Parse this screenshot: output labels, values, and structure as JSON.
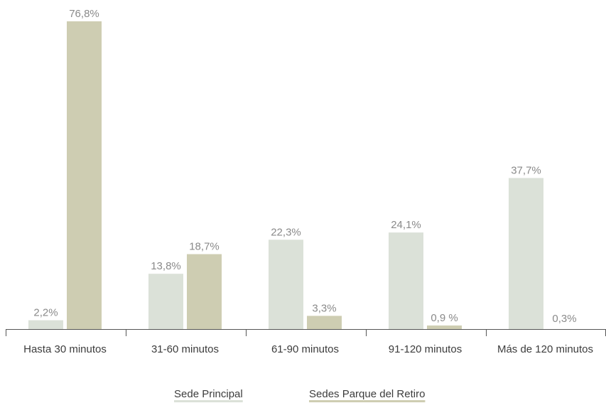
{
  "chart_data": {
    "type": "bar",
    "categories": [
      "Hasta 30 minutos",
      "31-60 minutos",
      "61-90 minutos",
      "91-120 minutos",
      "Más de 120 minutos"
    ],
    "series": [
      {
        "name": "Sede Principal",
        "color": "#dbe1d8",
        "values": [
          2.2,
          13.8,
          22.3,
          24.1,
          37.7
        ],
        "labels": [
          "2,2%",
          "13,8%",
          "22,3%",
          "24,1%",
          "37,7%"
        ]
      },
      {
        "name": "Sedes Parque del Retiro",
        "color": "#cecdb2",
        "values": [
          76.8,
          18.7,
          3.3,
          0.9,
          0.3
        ],
        "labels": [
          "76,8%",
          "18,7%",
          "3,3%",
          "0,9 %",
          "0,3%"
        ]
      }
    ],
    "ylim": [
      0,
      80
    ],
    "grid": false,
    "legend_position": "bottom-center"
  }
}
